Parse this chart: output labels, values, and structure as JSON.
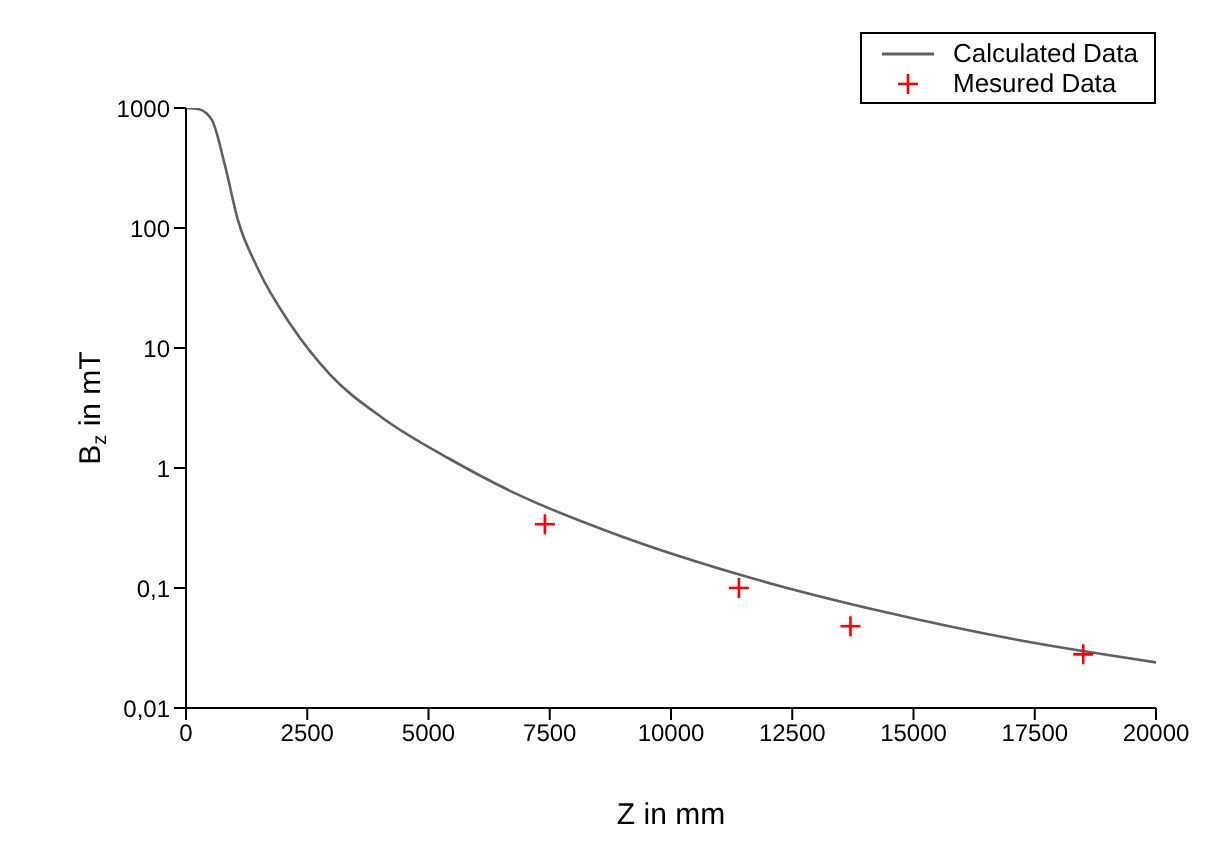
{
  "chart_data": {
    "type": "line",
    "xlabel": "Z in mm",
    "ylabel": "B$_{z}$ in mT",
    "log": "y",
    "grid": false,
    "legend": "top right",
    "xlim": [
      0,
      20000
    ],
    "xticks": [
      0,
      2500,
      5000,
      7500,
      10000,
      12500,
      15000,
      17500,
      20000
    ],
    "ylim": [
      0.01,
      1000
    ],
    "yticks": [
      {
        "value": 0.01,
        "label": "0,01"
      },
      {
        "value": 0.1,
        "label": "0,1"
      },
      1,
      10,
      100,
      1000
    ],
    "series": [
      {
        "name": "Calculated Data",
        "color": "#606060",
        "marker": "none",
        "line_style": "solid",
        "x": [
          0,
          250,
          530,
          800,
          1070,
          1480,
          2160,
          2970,
          4060,
          5420,
          6770,
          8970,
          11690,
          14410,
          17130,
          20000
        ],
        "values": [
          1000,
          980,
          800,
          337,
          117,
          46,
          15.6,
          6,
          2.6,
          1.2,
          0.62,
          0.27,
          0.12,
          0.063,
          0.037,
          0.024
        ]
      },
      {
        "name": "Mesured Data",
        "type": "scatter",
        "color": "#ff0000",
        "marker": "cross",
        "x": [
          7400,
          11400,
          13700,
          18500
        ],
        "values": [
          0.34,
          0.1,
          0.048,
          0.028
        ]
      }
    ]
  }
}
